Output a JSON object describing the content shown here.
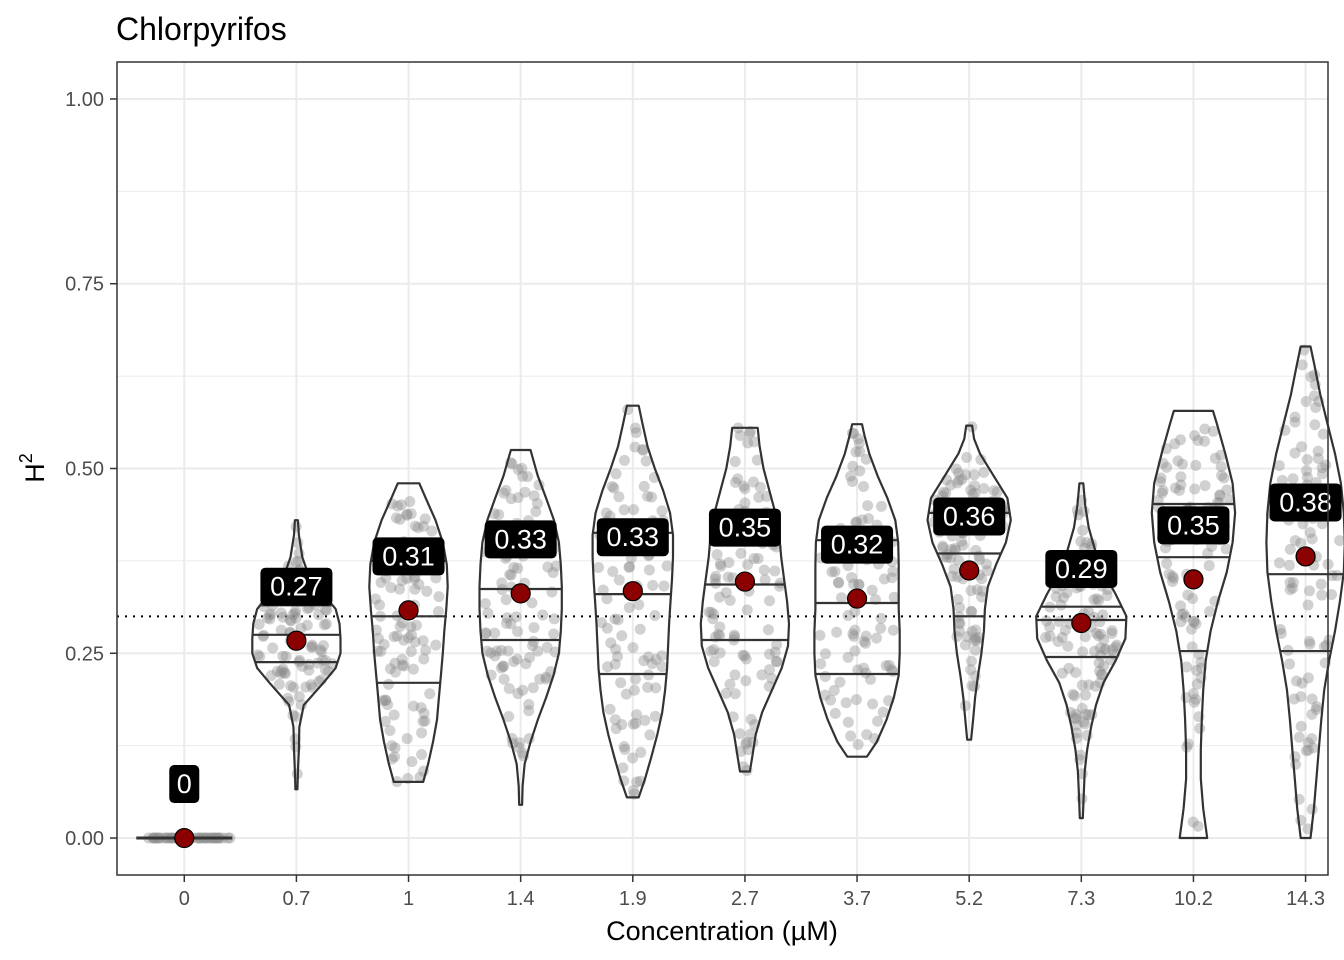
{
  "chart_data": {
    "type": "violin",
    "title": "Chlorpyrifos",
    "xlabel": "Concentration (µM)",
    "ylabel": "H",
    "ylabel_superscript": "2",
    "ylim": [
      -0.05,
      1.05
    ],
    "yticks": [
      0.0,
      0.25,
      0.5,
      0.75,
      1.0
    ],
    "ytick_labels": [
      "0.00",
      "0.25",
      "0.50",
      "0.75",
      "1.00"
    ],
    "reference_line": 0.3,
    "categories": [
      "0",
      "0.7",
      "1",
      "1.4",
      "1.9",
      "2.7",
      "3.7",
      "5.2",
      "7.3",
      "10.2",
      "14.3"
    ],
    "means": [
      0.0,
      0.267,
      0.308,
      0.331,
      0.334,
      0.347,
      0.324,
      0.362,
      0.291,
      0.35,
      0.381
    ],
    "mean_labels": [
      "0",
      "0.27",
      "0.31",
      "0.33",
      "0.33",
      "0.35",
      "0.32",
      "0.36",
      "0.29",
      "0.35",
      "0.38"
    ],
    "colors": {
      "mean_point": "#8b0000",
      "jitter": "#8c8c8c",
      "label_bg": "#000000",
      "label_text": "#ffffff",
      "grid": "#ebebeb",
      "outline": "#333333"
    },
    "violins": [
      {
        "min": -0.002,
        "max": 0.002,
        "quantiles": [],
        "ys": [],
        "ws": []
      },
      {
        "min": 0.066,
        "max": 0.43,
        "quantiles": [
          0.238,
          0.275,
          0.315
        ],
        "ys": [
          0.066,
          0.09,
          0.12,
          0.15,
          0.18,
          0.21,
          0.23,
          0.25,
          0.27,
          0.29,
          0.31,
          0.33,
          0.35,
          0.38,
          0.41,
          0.43
        ],
        "ws": [
          0.02,
          0.03,
          0.05,
          0.06,
          0.15,
          0.55,
          0.8,
          0.9,
          0.9,
          0.88,
          0.8,
          0.55,
          0.28,
          0.12,
          0.05,
          0.03
        ]
      },
      {
        "min": 0.076,
        "max": 0.48,
        "quantiles": [
          0.21,
          0.3,
          0.375
        ],
        "ys": [
          0.076,
          0.1,
          0.13,
          0.16,
          0.19,
          0.22,
          0.25,
          0.28,
          0.31,
          0.34,
          0.37,
          0.4,
          0.43,
          0.46,
          0.48
        ],
        "ws": [
          0.3,
          0.4,
          0.5,
          0.58,
          0.62,
          0.66,
          0.7,
          0.73,
          0.77,
          0.8,
          0.78,
          0.7,
          0.55,
          0.35,
          0.22
        ]
      },
      {
        "min": 0.045,
        "max": 0.525,
        "quantiles": [
          0.268,
          0.337,
          0.408
        ],
        "ys": [
          0.045,
          0.07,
          0.1,
          0.13,
          0.16,
          0.19,
          0.22,
          0.25,
          0.28,
          0.31,
          0.34,
          0.37,
          0.4,
          0.43,
          0.46,
          0.49,
          0.525
        ],
        "ws": [
          0.03,
          0.04,
          0.08,
          0.2,
          0.35,
          0.52,
          0.67,
          0.78,
          0.82,
          0.84,
          0.84,
          0.82,
          0.78,
          0.68,
          0.52,
          0.35,
          0.2
        ]
      },
      {
        "min": 0.055,
        "max": 0.585,
        "quantiles": [
          0.222,
          0.33,
          0.413
        ],
        "ys": [
          0.055,
          0.08,
          0.11,
          0.14,
          0.17,
          0.2,
          0.23,
          0.26,
          0.29,
          0.32,
          0.35,
          0.38,
          0.41,
          0.44,
          0.47,
          0.5,
          0.53,
          0.56,
          0.585
        ],
        "ws": [
          0.12,
          0.25,
          0.38,
          0.5,
          0.6,
          0.66,
          0.7,
          0.72,
          0.74,
          0.77,
          0.8,
          0.82,
          0.82,
          0.76,
          0.62,
          0.45,
          0.3,
          0.2,
          0.12
        ]
      },
      {
        "min": 0.09,
        "max": 0.555,
        "quantiles": [
          0.268,
          0.343,
          0.424
        ],
        "ys": [
          0.09,
          0.11,
          0.14,
          0.17,
          0.2,
          0.23,
          0.26,
          0.29,
          0.32,
          0.35,
          0.38,
          0.41,
          0.44,
          0.47,
          0.5,
          0.53,
          0.555
        ],
        "ws": [
          0.1,
          0.15,
          0.22,
          0.35,
          0.55,
          0.75,
          0.88,
          0.9,
          0.86,
          0.8,
          0.74,
          0.7,
          0.62,
          0.5,
          0.38,
          0.3,
          0.26
        ]
      },
      {
        "min": 0.11,
        "max": 0.56,
        "quantiles": [
          0.222,
          0.318,
          0.403
        ],
        "ys": [
          0.11,
          0.13,
          0.16,
          0.19,
          0.22,
          0.25,
          0.28,
          0.31,
          0.34,
          0.37,
          0.4,
          0.43,
          0.46,
          0.49,
          0.52,
          0.545,
          0.56
        ],
        "ws": [
          0.2,
          0.4,
          0.6,
          0.75,
          0.85,
          0.87,
          0.87,
          0.85,
          0.85,
          0.85,
          0.84,
          0.78,
          0.62,
          0.42,
          0.25,
          0.15,
          0.1
        ]
      },
      {
        "min": 0.133,
        "max": 0.558,
        "quantiles": [
          0.3,
          0.385,
          0.44
        ],
        "ys": [
          0.133,
          0.16,
          0.19,
          0.22,
          0.25,
          0.28,
          0.31,
          0.34,
          0.37,
          0.4,
          0.43,
          0.46,
          0.49,
          0.52,
          0.54,
          0.558
        ],
        "ws": [
          0.04,
          0.08,
          0.12,
          0.18,
          0.25,
          0.3,
          0.32,
          0.38,
          0.55,
          0.75,
          0.85,
          0.78,
          0.5,
          0.22,
          0.1,
          0.06
        ]
      },
      {
        "min": 0.027,
        "max": 0.48,
        "quantiles": [
          0.245,
          0.295,
          0.313
        ],
        "ys": [
          0.027,
          0.06,
          0.09,
          0.12,
          0.15,
          0.18,
          0.21,
          0.24,
          0.27,
          0.3,
          0.33,
          0.36,
          0.39,
          0.42,
          0.45,
          0.48
        ],
        "ws": [
          0.03,
          0.05,
          0.07,
          0.12,
          0.2,
          0.3,
          0.45,
          0.7,
          0.9,
          0.92,
          0.7,
          0.45,
          0.28,
          0.15,
          0.08,
          0.04
        ]
      },
      {
        "min": 0.0,
        "max": 0.578,
        "quantiles": [
          0.253,
          0.38,
          0.452
        ],
        "ys": [
          0.0,
          0.04,
          0.08,
          0.12,
          0.16,
          0.2,
          0.24,
          0.28,
          0.32,
          0.36,
          0.4,
          0.44,
          0.48,
          0.52,
          0.56,
          0.578
        ],
        "ws": [
          0.28,
          0.2,
          0.15,
          0.15,
          0.17,
          0.2,
          0.25,
          0.35,
          0.5,
          0.68,
          0.8,
          0.85,
          0.8,
          0.65,
          0.48,
          0.4
        ]
      },
      {
        "min": 0.0,
        "max": 0.665,
        "quantiles": [
          0.253,
          0.357,
          0.455
        ],
        "ys": [
          0.0,
          0.04,
          0.08,
          0.12,
          0.16,
          0.2,
          0.24,
          0.28,
          0.32,
          0.36,
          0.4,
          0.44,
          0.48,
          0.52,
          0.56,
          0.6,
          0.64,
          0.665
        ],
        "ws": [
          0.1,
          0.17,
          0.22,
          0.27,
          0.32,
          0.38,
          0.48,
          0.6,
          0.7,
          0.78,
          0.8,
          0.78,
          0.72,
          0.6,
          0.45,
          0.3,
          0.18,
          0.1
        ]
      }
    ]
  }
}
